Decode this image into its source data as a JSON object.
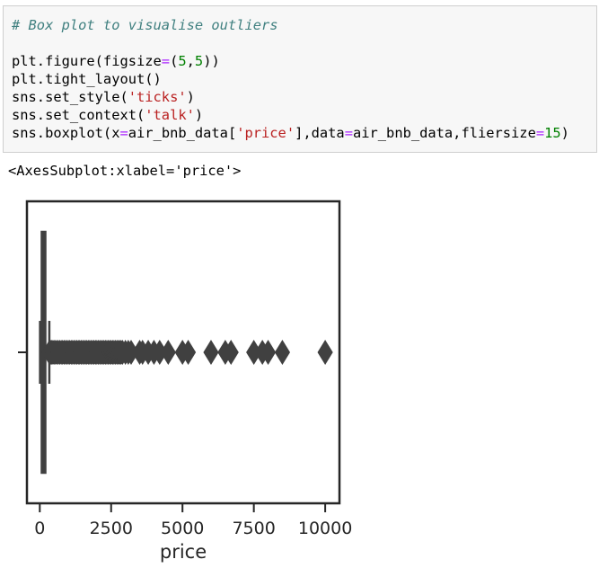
{
  "code_cell": {
    "lines": [
      [
        {
          "t": "# Box plot to visualise outliers",
          "c": "comment"
        }
      ],
      [
        {
          "t": "",
          "c": ""
        }
      ],
      [
        {
          "t": "plt.figure(figsize",
          "c": ""
        },
        {
          "t": "=",
          "c": "op"
        },
        {
          "t": "(",
          "c": ""
        },
        {
          "t": "5",
          "c": "num"
        },
        {
          "t": ",",
          "c": ""
        },
        {
          "t": "5",
          "c": "num"
        },
        {
          "t": "))",
          "c": ""
        }
      ],
      [
        {
          "t": "plt.tight_layout()",
          "c": ""
        }
      ],
      [
        {
          "t": "sns.set_style(",
          "c": ""
        },
        {
          "t": "'ticks'",
          "c": "str"
        },
        {
          "t": ")",
          "c": ""
        }
      ],
      [
        {
          "t": "sns.set_context(",
          "c": ""
        },
        {
          "t": "'talk'",
          "c": "str"
        },
        {
          "t": ")",
          "c": ""
        }
      ],
      [
        {
          "t": "sns.boxplot(x",
          "c": ""
        },
        {
          "t": "=",
          "c": "op"
        },
        {
          "t": "air_bnb_data[",
          "c": ""
        },
        {
          "t": "'price'",
          "c": "str"
        },
        {
          "t": "],data",
          "c": ""
        },
        {
          "t": "=",
          "c": "op"
        },
        {
          "t": "air_bnb_data,fliersize",
          "c": ""
        },
        {
          "t": "=",
          "c": "op"
        },
        {
          "t": "15",
          "c": "num"
        },
        {
          "t": ")",
          "c": ""
        }
      ]
    ]
  },
  "output": {
    "text": "<AxesSubplot:xlabel='price'>"
  },
  "chart_data": {
    "type": "box",
    "orientation": "horizontal",
    "xlabel": "price",
    "ylabel": "",
    "xlim": [
      -450,
      10500
    ],
    "xticks": [
      0,
      2500,
      5000,
      7500,
      10000
    ],
    "xtick_labels": [
      "0",
      "2500",
      "5000",
      "7500",
      "10000"
    ],
    "box": {
      "q1": 69,
      "median": 106,
      "q3": 175
    },
    "whiskers": [
      10,
      334
    ],
    "fliers": [
      340,
      380,
      420,
      460,
      500,
      550,
      600,
      650,
      700,
      750,
      800,
      850,
      900,
      950,
      1000,
      1050,
      1100,
      1150,
      1200,
      1250,
      1300,
      1350,
      1400,
      1450,
      1500,
      1550,
      1600,
      1650,
      1700,
      1750,
      1800,
      1850,
      1900,
      1950,
      2000,
      2050,
      2100,
      2150,
      2200,
      2250,
      2300,
      2350,
      2400,
      2450,
      2500,
      2550,
      2600,
      2650,
      2700,
      2750,
      2800,
      2850,
      2900,
      3000,
      3100,
      3200,
      3500,
      3600,
      3800,
      4000,
      4200,
      4500,
      5000,
      5200,
      6000,
      6500,
      6700,
      7500,
      7800,
      8000,
      8500,
      10000
    ],
    "colors": {
      "box": "#404040",
      "edge": "#404040",
      "axes": "#262626"
    }
  }
}
